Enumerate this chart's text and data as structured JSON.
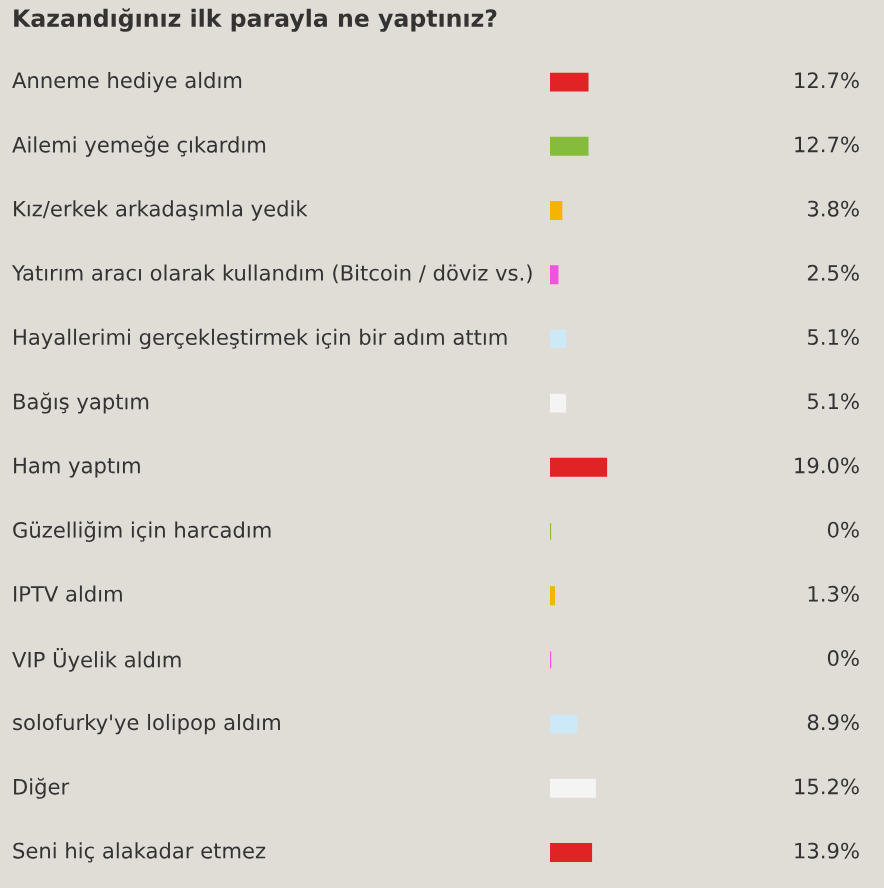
{
  "chart_data": {
    "type": "bar",
    "orientation": "horizontal",
    "title": "Kazandığınız ilk parayla ne yaptınız?",
    "categories": [
      "Anneme hediye aldım",
      "Ailemi yemeğe çıkardım",
      "Kız/erkek arkadaşımla yedik",
      "Yatırım aracı olarak kullandım (Bitcoin / döviz vs.)",
      "Hayallerimi gerçekleştirmek için bir adım attım",
      "Bağış yaptım",
      "Ham yaptım",
      "Güzelliğim için harcadım",
      "IPTV aldım",
      "VIP Üyelik aldım",
      "solofurky'ye lolipop aldım",
      "Diğer",
      "Seni hiç alakadar etmez"
    ],
    "values": [
      12.7,
      12.7,
      3.8,
      2.5,
      5.1,
      5.1,
      19.0,
      0,
      1.3,
      0,
      8.9,
      15.2,
      13.9
    ],
    "value_labels": [
      "12.7%",
      "12.7%",
      "3.8%",
      "2.5%",
      "5.1%",
      "5.1%",
      "19.0%",
      "0%",
      "1.3%",
      "0%",
      "8.9%",
      "15.2%",
      "13.9%"
    ],
    "colors": [
      "#e02424",
      "#86bc3c",
      "#f4b400",
      "#ee55dd",
      "#cde9f8",
      "#f4f4f4",
      "#e02424",
      "#86bc3c",
      "#f4b400",
      "#ee55dd",
      "#cde9f8",
      "#f4f4f4",
      "#e02424"
    ],
    "grid": false,
    "legend": false
  }
}
